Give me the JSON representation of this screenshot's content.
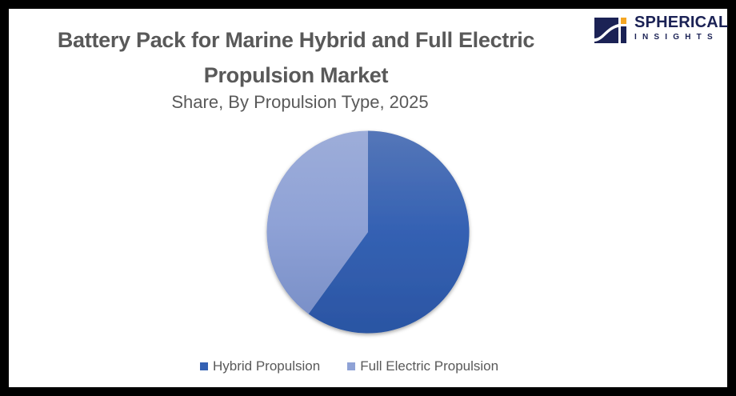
{
  "brand": {
    "logo_word1": "SPHERICAL",
    "logo_word2": "INSIGHTS",
    "navy": "#1b2255",
    "orange": "#f5a623"
  },
  "header": {
    "title": "Battery Pack for Marine Hybrid and Full Electric Propulsion Market",
    "subtitle": "Share, By Propulsion Type, 2025"
  },
  "chart_data": {
    "type": "pie",
    "title": "Battery Pack for Marine Hybrid and Full Electric Propulsion Market",
    "subtitle": "Share, By Propulsion Type, 2025",
    "categories": [
      "Hybrid Propulsion",
      "Full Electric Propulsion"
    ],
    "values": [
      60,
      40
    ],
    "unit": "%",
    "colors": [
      "#3461b3",
      "#8fa2d6"
    ],
    "start_angle_deg": 0,
    "direction": "clockwise",
    "data_labels": false,
    "legend_position": "bottom"
  },
  "legend": {
    "items": [
      {
        "label": "Hybrid Propulsion",
        "color": "#3461b3"
      },
      {
        "label": "Full Electric Propulsion",
        "color": "#8fa2d6"
      }
    ]
  }
}
